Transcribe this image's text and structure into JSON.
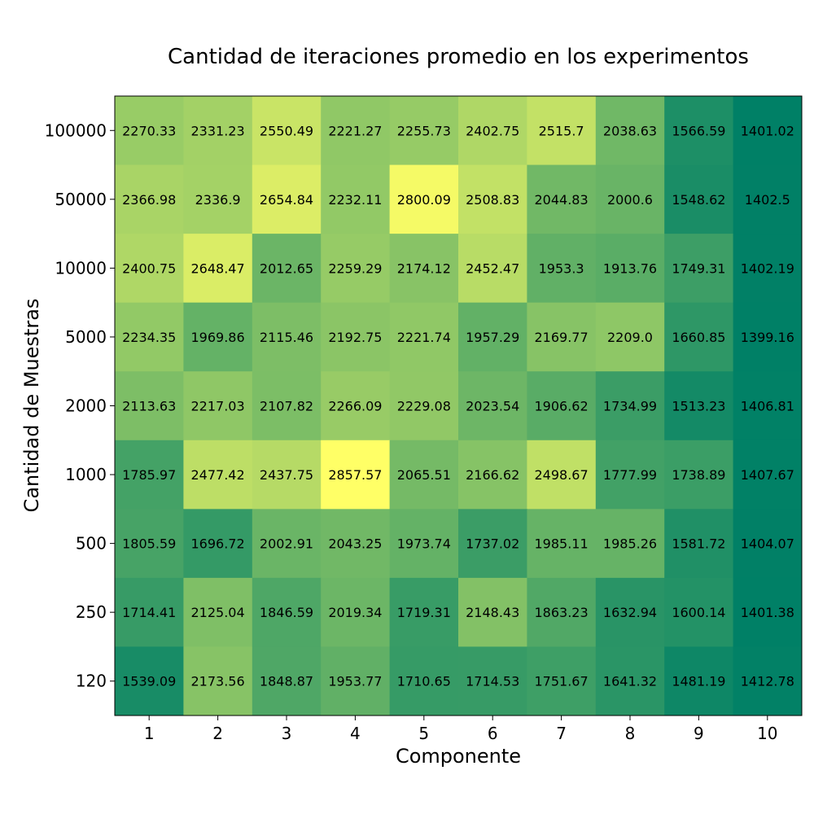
{
  "chart_data": {
    "type": "heatmap",
    "title": "Cantidad de iteraciones promedio en los experimentos",
    "xlabel": "Componente",
    "ylabel": "Cantidad de Muestras",
    "x_categories": [
      "1",
      "2",
      "3",
      "4",
      "5",
      "6",
      "7",
      "8",
      "9",
      "10"
    ],
    "y_categories": [
      "100000",
      "50000",
      "10000",
      "5000",
      "2000",
      "1000",
      "500",
      "250",
      "120"
    ],
    "values": [
      [
        "2270.33",
        "2331.23",
        "2550.49",
        "2221.27",
        "2255.73",
        "2402.75",
        "2515.7",
        "2038.63",
        "1566.59",
        "1401.02"
      ],
      [
        "2366.98",
        "2336.9",
        "2654.84",
        "2232.11",
        "2800.09",
        "2508.83",
        "2044.83",
        "2000.6",
        "1548.62",
        "1402.5"
      ],
      [
        "2400.75",
        "2648.47",
        "2012.65",
        "2259.29",
        "2174.12",
        "2452.47",
        "1953.3",
        "1913.76",
        "1749.31",
        "1402.19"
      ],
      [
        "2234.35",
        "1969.86",
        "2115.46",
        "2192.75",
        "2221.74",
        "1957.29",
        "2169.77",
        "2209.0",
        "1660.85",
        "1399.16"
      ],
      [
        "2113.63",
        "2217.03",
        "2107.82",
        "2266.09",
        "2229.08",
        "2023.54",
        "1906.62",
        "1734.99",
        "1513.23",
        "1406.81"
      ],
      [
        "1785.97",
        "2477.42",
        "2437.75",
        "2857.57",
        "2065.51",
        "2166.62",
        "2498.67",
        "1777.99",
        "1738.89",
        "1407.67"
      ],
      [
        "1805.59",
        "1696.72",
        "2002.91",
        "2043.25",
        "1973.74",
        "1737.02",
        "1985.11",
        "1985.26",
        "1581.72",
        "1404.07"
      ],
      [
        "1714.41",
        "2125.04",
        "1846.59",
        "2019.34",
        "1719.31",
        "2148.43",
        "1863.23",
        "1632.94",
        "1600.14",
        "1401.38"
      ],
      [
        "1539.09",
        "2173.56",
        "1848.87",
        "1953.77",
        "1710.65",
        "1714.53",
        "1751.67",
        "1641.32",
        "1481.19",
        "1412.78"
      ]
    ],
    "colormap": "summer",
    "color_min": "#008066",
    "color_max": "#ffff66",
    "legend": "none",
    "grid": false
  }
}
